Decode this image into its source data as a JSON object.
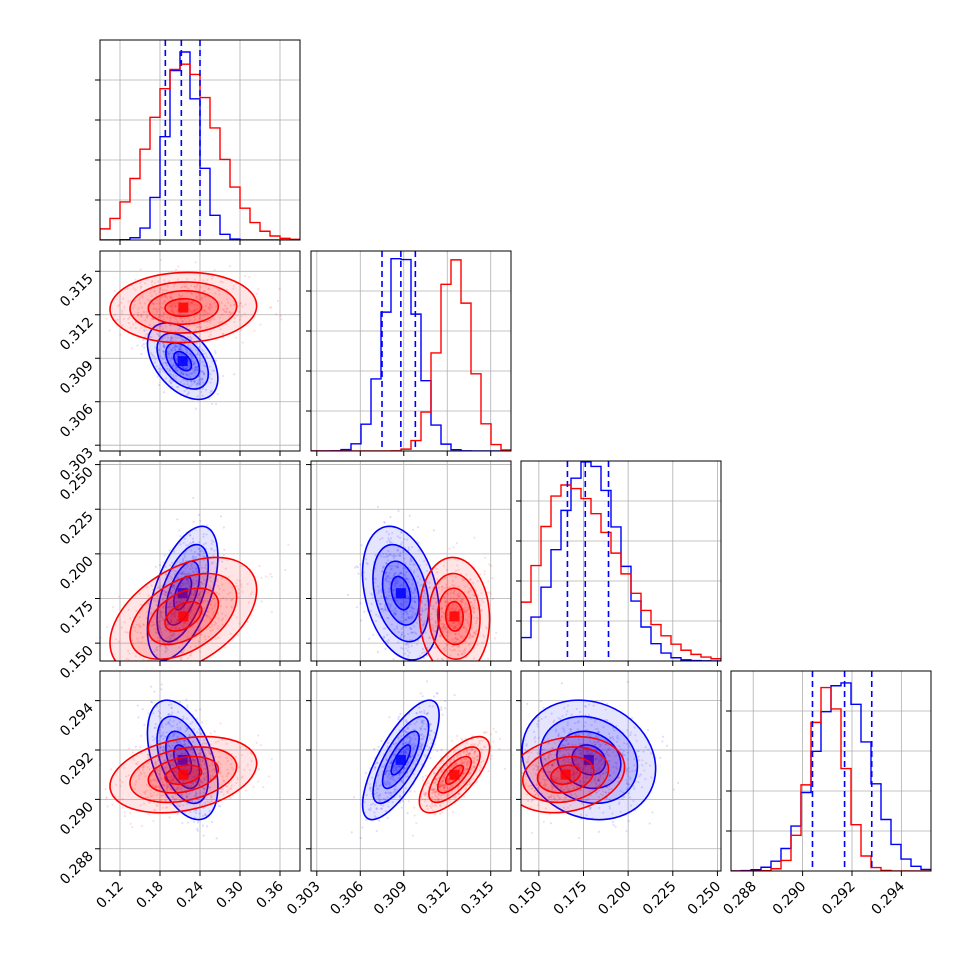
{
  "chart_data": {
    "type": "corner",
    "parameters": [
      {
        "range": [
          0.09,
          0.39
        ],
        "ticks": [
          0.12,
          0.18,
          0.24,
          0.3,
          0.36
        ],
        "tick_labels": [
          "0.12",
          "0.18",
          "0.24",
          "0.30",
          "0.36"
        ]
      },
      {
        "range": [
          0.3026,
          0.3164
        ],
        "ticks": [
          0.303,
          0.306,
          0.309,
          0.312,
          0.315
        ],
        "tick_labels": [
          "0.303",
          "0.306",
          "0.309",
          "0.312",
          "0.315"
        ]
      },
      {
        "range": [
          0.14,
          0.252
        ],
        "ticks": [
          0.15,
          0.175,
          0.2,
          0.225,
          0.25
        ],
        "tick_labels": [
          "0.150",
          "0.175",
          "0.200",
          "0.225",
          "0.250"
        ]
      },
      {
        "range": [
          0.2871,
          0.2952
        ],
        "ticks": [
          0.288,
          0.29,
          0.292,
          0.294
        ],
        "tick_labels": [
          "0.288",
          "0.290",
          "0.292",
          "0.294"
        ]
      }
    ],
    "series": [
      {
        "color": "#0000ff",
        "quantiles": [
          [
            0.188,
            0.212,
            0.24
          ],
          [
            0.3075,
            0.3088,
            0.3098
          ],
          [
            0.166,
            0.176,
            0.189
          ],
          [
            0.2904,
            0.2917,
            0.2928
          ]
        ],
        "mean": [
          0.214,
          0.3088,
          0.178,
          0.2916
        ],
        "std": [
          0.024,
          0.0012,
          0.017,
          0.0011
        ],
        "corr": [
          [
            1,
            -0.45,
            0.55,
            -0.45
          ],
          [
            -0.45,
            1,
            -0.3,
            0.75
          ],
          [
            0.55,
            -0.3,
            1,
            -0.15
          ],
          [
            -0.45,
            0.75,
            -0.15,
            1
          ]
        ],
        "hist_peaks": [
          [
            0.21,
            0.95
          ],
          [
            0.3089,
            1.0
          ],
          [
            0.177,
            1.0
          ],
          [
            0.2917,
            0.95
          ]
        ]
      },
      {
        "color": "#ff0000",
        "mean": [
          0.215,
          0.3125,
          0.165,
          0.291
        ],
        "std": [
          0.05,
          0.0011,
          0.015,
          0.0007
        ],
        "corr": [
          [
            1,
            0.05,
            0.45,
            0.3
          ],
          [
            0.05,
            1,
            -0.05,
            0.7
          ],
          [
            0.45,
            -0.05,
            1,
            0.2
          ],
          [
            0.3,
            0.7,
            0.2,
            1
          ]
        ],
        "hist_peaks": [
          [
            0.208,
            0.88
          ],
          [
            0.3125,
            0.96
          ],
          [
            0.152,
            0.88
          ],
          [
            0.2911,
            0.92
          ]
        ]
      }
    ],
    "grid": true
  }
}
